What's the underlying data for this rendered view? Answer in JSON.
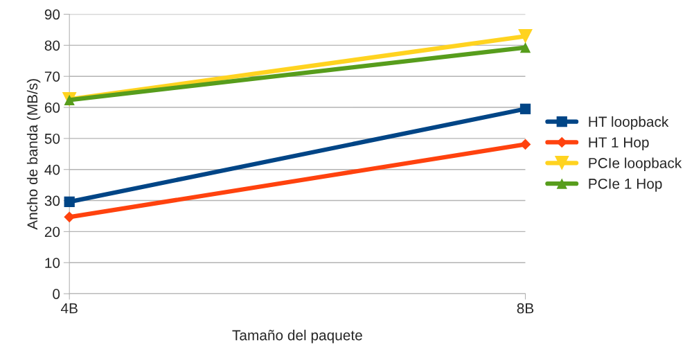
{
  "chart_data": {
    "type": "line",
    "xlabel": "Tamaño del paquete",
    "ylabel": "Ancho de banda (MB/s)",
    "x": [
      4,
      8
    ],
    "series": [
      {
        "name": "HT loopback",
        "color": "#004586",
        "marker": "square",
        "values": [
          29.6,
          59.5
        ]
      },
      {
        "name": "HT 1 Hop",
        "color": "#ff420e",
        "marker": "diamond",
        "values": [
          24.7,
          48.1
        ]
      },
      {
        "name": "PCIe loopback",
        "color": "#ffd320",
        "marker": "triangle_down",
        "values": [
          62.6,
          82.9
        ]
      },
      {
        "name": "PCIe 1 Hop",
        "color": "#579d1c",
        "marker": "triangle",
        "values": [
          62.4,
          79.3
        ]
      }
    ],
    "xlim": [
      4,
      8
    ],
    "xticks": [
      {
        "value": 4,
        "label": "4B"
      },
      {
        "value": 8,
        "label": "8B"
      }
    ],
    "ylim": [
      0,
      90
    ],
    "yticks": [
      0,
      10,
      20,
      30,
      40,
      50,
      60,
      70,
      80,
      90
    ],
    "grid": "y",
    "legend": "right"
  }
}
